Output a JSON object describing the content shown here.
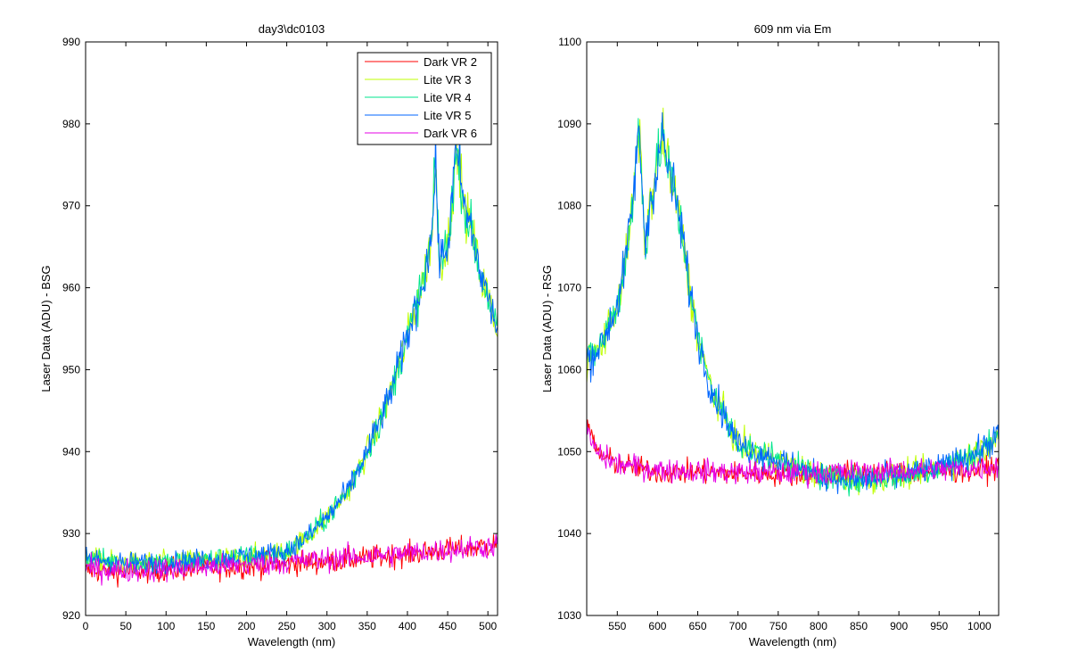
{
  "chart_data": [
    {
      "type": "line",
      "title": "day3\\dc0103",
      "xlabel": "Wavelength (nm)",
      "ylabel": "Laser Data (ADU) - BSG",
      "xlim": [
        0,
        512
      ],
      "ylim": [
        920,
        990
      ],
      "xticks": [
        0,
        50,
        100,
        150,
        200,
        250,
        300,
        350,
        400,
        450,
        500
      ],
      "yticks": [
        920,
        930,
        940,
        950,
        960,
        970,
        980,
        990
      ],
      "legend_position": "top-right",
      "legend": [
        "Dark VR 2",
        "Lite VR 3",
        "Lite VR 4",
        "Lite VR 5",
        "Dark VR 6"
      ],
      "series": [
        {
          "name": "Dark VR 2",
          "color": "#ff0000",
          "x": [
            0,
            50,
            100,
            150,
            200,
            250,
            300,
            350,
            400,
            450,
            500,
            512
          ],
          "y": [
            925.5,
            925.3,
            925.6,
            925.8,
            926.0,
            926.3,
            926.6,
            927.0,
            927.5,
            928.0,
            928.5,
            928.8
          ]
        },
        {
          "name": "Lite VR 3",
          "color": "#bfff00",
          "x": [
            0,
            50,
            100,
            150,
            200,
            250,
            275,
            300,
            325,
            350,
            375,
            400,
            420,
            430,
            435,
            440,
            450,
            460,
            465,
            470,
            480,
            490,
            500,
            505,
            512
          ],
          "y": [
            927,
            926.4,
            926.5,
            926.8,
            927.2,
            927.8,
            929.5,
            932,
            935,
            940,
            946,
            954,
            961,
            966,
            975,
            963,
            965,
            976,
            975,
            970,
            967,
            962,
            959,
            957,
            955
          ]
        },
        {
          "name": "Lite VR 4",
          "color": "#00e68c",
          "x": [
            0,
            50,
            100,
            150,
            200,
            250,
            275,
            300,
            325,
            350,
            375,
            400,
            420,
            430,
            435,
            440,
            450,
            460,
            465,
            470,
            480,
            490,
            500,
            505,
            512
          ],
          "y": [
            927,
            926.4,
            926.5,
            926.8,
            927.2,
            927.8,
            929.5,
            932,
            935,
            940,
            946,
            954,
            961,
            966,
            975,
            963,
            965,
            976,
            975,
            970,
            967,
            962,
            959,
            957,
            955
          ]
        },
        {
          "name": "Lite VR 5",
          "color": "#0066ff",
          "x": [
            0,
            50,
            100,
            150,
            200,
            250,
            275,
            300,
            325,
            350,
            375,
            400,
            420,
            430,
            435,
            440,
            450,
            460,
            465,
            470,
            480,
            490,
            500,
            505,
            512
          ],
          "y": [
            927,
            926.4,
            926.5,
            926.8,
            927.2,
            927.8,
            929.5,
            932,
            935,
            940,
            946,
            954,
            961,
            966,
            975,
            963,
            965,
            976,
            975,
            970,
            967,
            962,
            959,
            957,
            955
          ]
        },
        {
          "name": "Dark VR 6",
          "color": "#e600e6",
          "x": [
            0,
            50,
            100,
            150,
            200,
            250,
            300,
            350,
            400,
            450,
            500,
            512
          ],
          "y": [
            925.7,
            925.5,
            925.6,
            925.9,
            926.2,
            926.5,
            926.9,
            927.2,
            927.6,
            928.0,
            928.4,
            928.6
          ]
        }
      ]
    },
    {
      "type": "line",
      "title": "609 nm via Em",
      "xlabel": "Wavelength (nm)",
      "ylabel": "Laser Data (ADU) - RSG",
      "xlim": [
        512,
        1024
      ],
      "ylim": [
        1030,
        1100
      ],
      "xticks": [
        550,
        600,
        650,
        700,
        750,
        800,
        850,
        900,
        950,
        1000
      ],
      "yticks": [
        1030,
        1040,
        1050,
        1060,
        1070,
        1080,
        1090,
        1100
      ],
      "series": [
        {
          "name": "Dark VR 2",
          "color": "#ff0000",
          "x": [
            512,
            520,
            530,
            550,
            600,
            650,
            700,
            750,
            800,
            850,
            900,
            950,
            1000,
            1024
          ],
          "y": [
            1054,
            1051,
            1049.5,
            1048.5,
            1047.5,
            1047.5,
            1047.3,
            1047.3,
            1047.3,
            1047.4,
            1047.5,
            1047.6,
            1047.8,
            1048
          ]
        },
        {
          "name": "Lite VR 3",
          "color": "#bfff00",
          "x": [
            512,
            530,
            550,
            560,
            570,
            576,
            580,
            585,
            590,
            600,
            606,
            610,
            620,
            630,
            640,
            650,
            660,
            670,
            680,
            690,
            700,
            720,
            750,
            800,
            850,
            900,
            950,
            1000,
            1024
          ],
          "y": [
            1061,
            1063,
            1068,
            1073,
            1081,
            1089,
            1084,
            1075,
            1080,
            1085,
            1089,
            1086,
            1082,
            1077,
            1070,
            1064,
            1060,
            1057,
            1055,
            1053,
            1051,
            1050,
            1049,
            1047,
            1046.5,
            1047,
            1048,
            1050,
            1052
          ]
        },
        {
          "name": "Lite VR 4",
          "color": "#00e68c",
          "x": [
            512,
            530,
            550,
            560,
            570,
            576,
            580,
            585,
            590,
            600,
            606,
            610,
            620,
            630,
            640,
            650,
            660,
            670,
            680,
            690,
            700,
            720,
            750,
            800,
            850,
            900,
            950,
            1000,
            1024
          ],
          "y": [
            1061,
            1063,
            1068,
            1073,
            1081,
            1089,
            1084,
            1075,
            1080,
            1085,
            1089,
            1086,
            1082,
            1077,
            1070,
            1064,
            1060,
            1057,
            1055,
            1053,
            1051,
            1050,
            1049,
            1047,
            1046.5,
            1047,
            1048,
            1050,
            1052
          ]
        },
        {
          "name": "Lite VR 5",
          "color": "#0066ff",
          "x": [
            512,
            530,
            550,
            560,
            570,
            576,
            580,
            585,
            590,
            600,
            606,
            610,
            620,
            630,
            640,
            650,
            660,
            670,
            680,
            690,
            700,
            720,
            750,
            800,
            850,
            900,
            950,
            1000,
            1024
          ],
          "y": [
            1061,
            1063,
            1068,
            1073,
            1081,
            1089,
            1084,
            1075,
            1080,
            1085,
            1089,
            1086,
            1082,
            1077,
            1070,
            1064,
            1060,
            1057,
            1055,
            1053,
            1051,
            1050,
            1049,
            1047,
            1046.5,
            1047,
            1048,
            1050,
            1052
          ]
        },
        {
          "name": "Dark VR 6",
          "color": "#e600e6",
          "x": [
            512,
            520,
            530,
            550,
            600,
            650,
            700,
            750,
            800,
            850,
            900,
            950,
            1000,
            1024
          ],
          "y": [
            1053,
            1050.5,
            1049.5,
            1048.5,
            1047.8,
            1047.6,
            1047.5,
            1047.4,
            1047.4,
            1047.5,
            1047.6,
            1047.8,
            1048,
            1048.3
          ]
        }
      ]
    }
  ]
}
